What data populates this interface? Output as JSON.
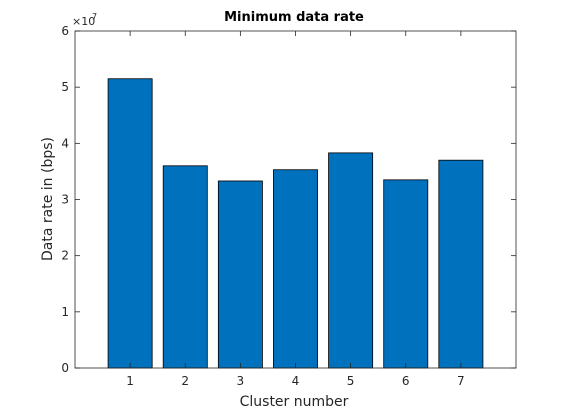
{
  "chart_data": {
    "type": "bar",
    "title": "Minimum data rate",
    "xlabel": "Cluster number",
    "ylabel": "Data rate in (bps)",
    "categories": [
      "1",
      "2",
      "3",
      "4",
      "5",
      "6",
      "7"
    ],
    "values": [
      51500000,
      36000000,
      33300000,
      35300000,
      38300000,
      33500000,
      37000000
    ],
    "xlim": [
      0,
      8
    ],
    "ylim": [
      0,
      60000000
    ],
    "y_scale_factor": 10000000,
    "y_tick_labels": [
      "0",
      "1",
      "2",
      "3",
      "4",
      "5",
      "6"
    ],
    "y_exponent_base": "×10",
    "y_exponent_power": "7",
    "bar_color": "#0072BD",
    "edge_color": "#000000",
    "grid": false,
    "legend": false
  }
}
